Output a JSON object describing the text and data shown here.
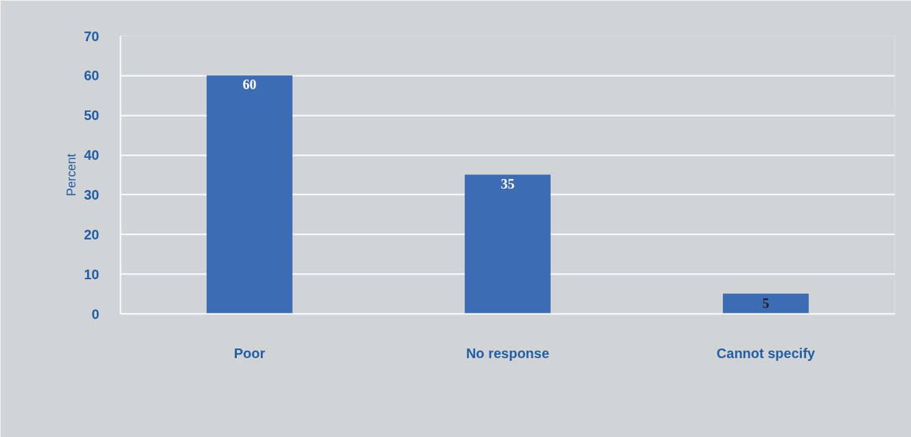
{
  "chart_data": {
    "type": "bar",
    "ylabel": "Percent",
    "categories": [
      "Poor",
      "No response",
      "Cannot specify"
    ],
    "values": [
      60,
      35,
      5
    ],
    "color": "#3d6cb3",
    "ylim": [
      0,
      70
    ],
    "yticks": [
      0,
      10,
      20,
      30,
      40,
      50,
      60,
      70
    ],
    "grid": "y",
    "data_labels": true
  }
}
